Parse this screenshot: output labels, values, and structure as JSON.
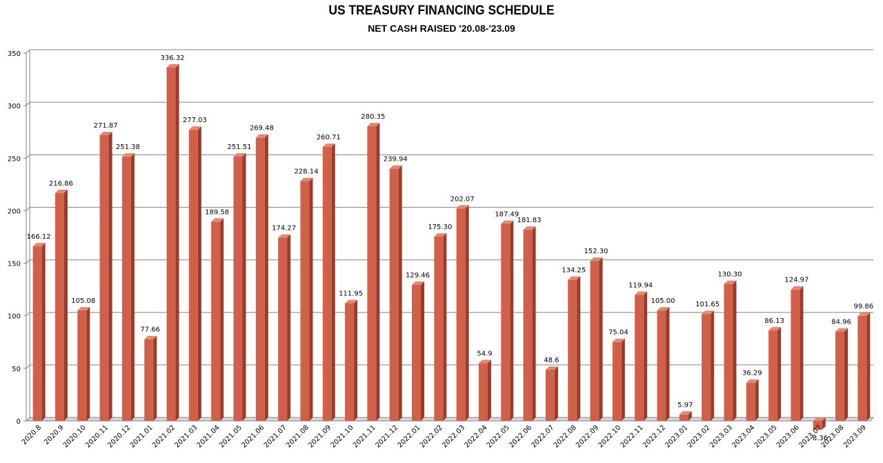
{
  "colors": {
    "bar_front": "#D0604A",
    "bar_side": "#9E3A28",
    "bar_top": "#E08A74",
    "grid": "#808080"
  },
  "chart_data": {
    "type": "bar",
    "title": "US TREASURY FINANCING SCHEDULE",
    "subtitle": "NET CASH RAISED '20.08-'23.09",
    "xlabel": "",
    "ylabel": "",
    "ylim": [
      0,
      350
    ],
    "yticks": [
      0,
      50,
      100,
      150,
      200,
      250,
      300,
      350
    ],
    "grid": true,
    "categories": [
      "2020.8",
      "2020.9",
      "2020.10",
      "2020.11",
      "2020.12",
      "2021.01",
      "2021.02",
      "2021.03",
      "2021.04",
      "2021.05",
      "2021.06",
      "2021.07",
      "2021.08",
      "2021.09",
      "2021.10",
      "2021.11",
      "2021.12",
      "2022.01",
      "2022.02",
      "2022.03",
      "2022.04",
      "2022.05",
      "2022.06",
      "2022.07",
      "2022.08",
      "2022.09",
      "2022.10",
      "2022.11",
      "2022.12",
      "2023.01",
      "2023.02",
      "2023.03",
      "2023.04",
      "2023.05",
      "2023.06",
      "2023.07",
      "2023.08",
      "2023.09"
    ],
    "values": [
      166.12,
      216.86,
      105.08,
      271.87,
      251.38,
      77.66,
      336.32,
      277.03,
      189.58,
      251.51,
      269.48,
      174.27,
      228.14,
      260.71,
      111.95,
      280.35,
      239.94,
      129.46,
      175.3,
      202.07,
      54.9,
      187.49,
      181.83,
      48.6,
      134.25,
      152.3,
      75.04,
      119.94,
      105.0,
      5.97,
      101.65,
      130.3,
      36.29,
      86.13,
      124.97,
      -8.36,
      84.96,
      99.86
    ],
    "value_labels": [
      "166.12",
      "216.86",
      "105.08",
      "271.87",
      "251.38",
      "77.66",
      "336.32",
      "277.03",
      "189.58",
      "251.51",
      "269.48",
      "174.27",
      "228.14",
      "260.71",
      "111.95",
      "280.35",
      "239.94",
      "129.46",
      "175.30",
      "202.07",
      "54.9",
      "187.49",
      "181.83",
      "48.6",
      "134.25",
      "152.30",
      "75.04",
      "119.94",
      "105.00",
      "5.97",
      "101.65",
      "130.30",
      "36.29",
      "86.13",
      "124.97",
      "-8.36",
      "84.96",
      "99.86"
    ]
  }
}
